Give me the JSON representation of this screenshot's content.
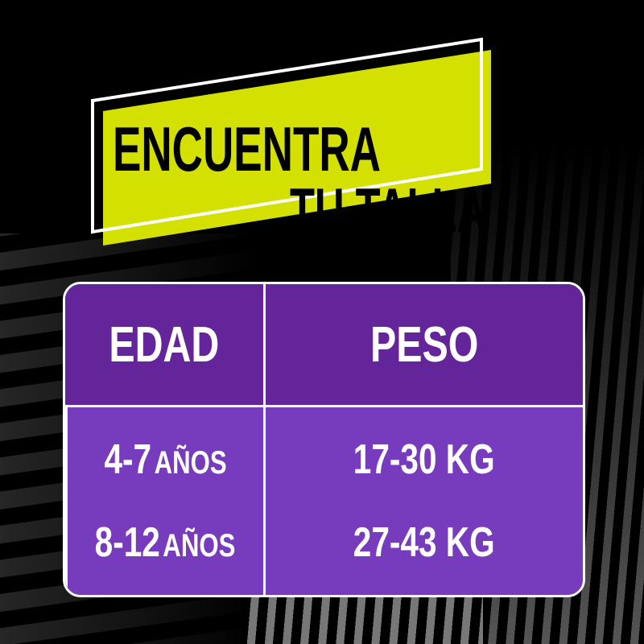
{
  "banner": {
    "line1": "ENCUENTRA",
    "line2": "TU TALLA",
    "color": "#d4e000"
  },
  "table": {
    "headers": [
      "EDAD",
      "PESO"
    ],
    "rows": [
      {
        "age": "4-7",
        "age_unit": "AÑOS",
        "weight": "17-30 KG"
      },
      {
        "age": "8-12",
        "age_unit": "AÑOS",
        "weight": "27-43 KG"
      }
    ],
    "header_color": "#65259a",
    "body_color": "#773bbd"
  }
}
